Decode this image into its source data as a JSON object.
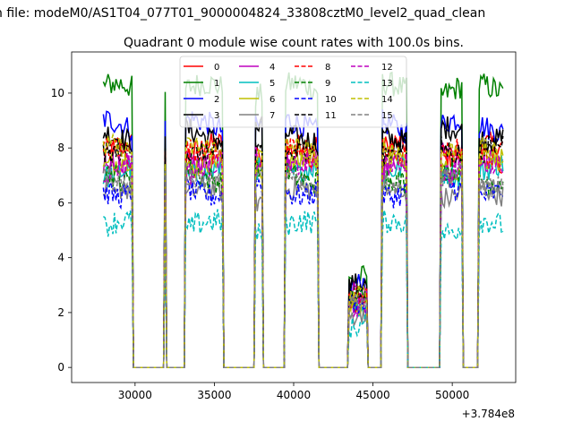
{
  "chart_data": {
    "type": "line",
    "suptitle": "n file: modeM0/AS1T04_077T01_9000004824_33808cztM0_level2_quad_clean",
    "title": "Quadrant 0 module wise count rates with 100.0s bins.",
    "xlabel": "",
    "ylabel": "",
    "x_offset_label": "+3.784e8",
    "xlim": [
      26000,
      54000
    ],
    "ylim": [
      -0.55,
      11.5
    ],
    "xticks": [
      30000,
      35000,
      40000,
      45000,
      50000
    ],
    "xtick_labels": [
      "30000",
      "35000",
      "40000",
      "45000",
      "50000"
    ],
    "yticks": [
      0,
      2,
      4,
      6,
      8,
      10
    ],
    "ytick_labels": [
      "0",
      "2",
      "4",
      "6",
      "8",
      "10"
    ],
    "grid": false,
    "legend_location": "top-center",
    "legend_columns": 4,
    "on_intervals": [
      [
        28000,
        29800
      ],
      [
        31900,
        31950
      ],
      [
        33200,
        35500
      ],
      [
        37600,
        38000
      ],
      [
        39500,
        41500
      ],
      [
        43500,
        44600
      ],
      [
        45600,
        47100
      ],
      [
        49300,
        50600
      ],
      [
        51700,
        53200
      ]
    ],
    "low_intervals": [
      [
        43500,
        44600
      ]
    ],
    "series": [
      {
        "name": "0",
        "color": "#ff0000",
        "dash": "solid",
        "level": 7.9
      },
      {
        "name": "1",
        "color": "#008000",
        "dash": "solid",
        "level": 10.1
      },
      {
        "name": "2",
        "color": "#0000ff",
        "dash": "solid",
        "level": 8.8
      },
      {
        "name": "3",
        "color": "#000000",
        "dash": "solid",
        "level": 8.5
      },
      {
        "name": "4",
        "color": "#bf00bf",
        "dash": "solid",
        "level": 7.6
      },
      {
        "name": "5",
        "color": "#00bfbf",
        "dash": "solid",
        "level": 7.2
      },
      {
        "name": "6",
        "color": "#bfbf00",
        "dash": "solid",
        "level": 7.4
      },
      {
        "name": "7",
        "color": "#808080",
        "dash": "solid",
        "level": 6.3
      },
      {
        "name": "8",
        "color": "#ff0000",
        "dash": "dashed",
        "level": 7.7
      },
      {
        "name": "9",
        "color": "#008000",
        "dash": "dashed",
        "level": 7.0
      },
      {
        "name": "10",
        "color": "#0000ff",
        "dash": "dashed",
        "level": 6.5
      },
      {
        "name": "11",
        "color": "#000000",
        "dash": "dashed",
        "level": 8.0
      },
      {
        "name": "12",
        "color": "#bf00bf",
        "dash": "dashed",
        "level": 7.3
      },
      {
        "name": "13",
        "color": "#00bfbf",
        "dash": "dashed",
        "level": 5.1
      },
      {
        "name": "14",
        "color": "#bfbf00",
        "dash": "dashed",
        "level": 7.8
      },
      {
        "name": "15",
        "color": "#808080",
        "dash": "dashed",
        "level": 6.8
      }
    ]
  }
}
